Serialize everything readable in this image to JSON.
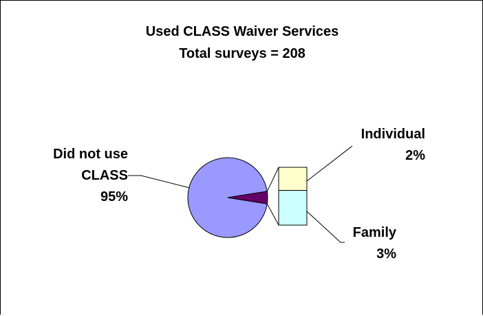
{
  "chart_data": {
    "type": "pie",
    "variant": "bar-of-pie",
    "title": "Used CLASS Waiver Services",
    "subtitle": "Total surveys = 208",
    "slices": [
      {
        "label_lines": [
          "Did not use",
          "CLASS"
        ],
        "value": 95,
        "value_label": "95%",
        "color": "#9999ff"
      },
      {
        "label_lines": [
          "Individual"
        ],
        "value": 2,
        "value_label": "2%",
        "color": "#ffffcc"
      },
      {
        "label_lines": [
          "Family"
        ],
        "value": 3,
        "value_label": "3%",
        "color": "#ccffff"
      }
    ],
    "combined_slice_color": "#660066",
    "breakout_order": [
      "Individual",
      "Family"
    ],
    "legend": "none",
    "grid": false
  }
}
